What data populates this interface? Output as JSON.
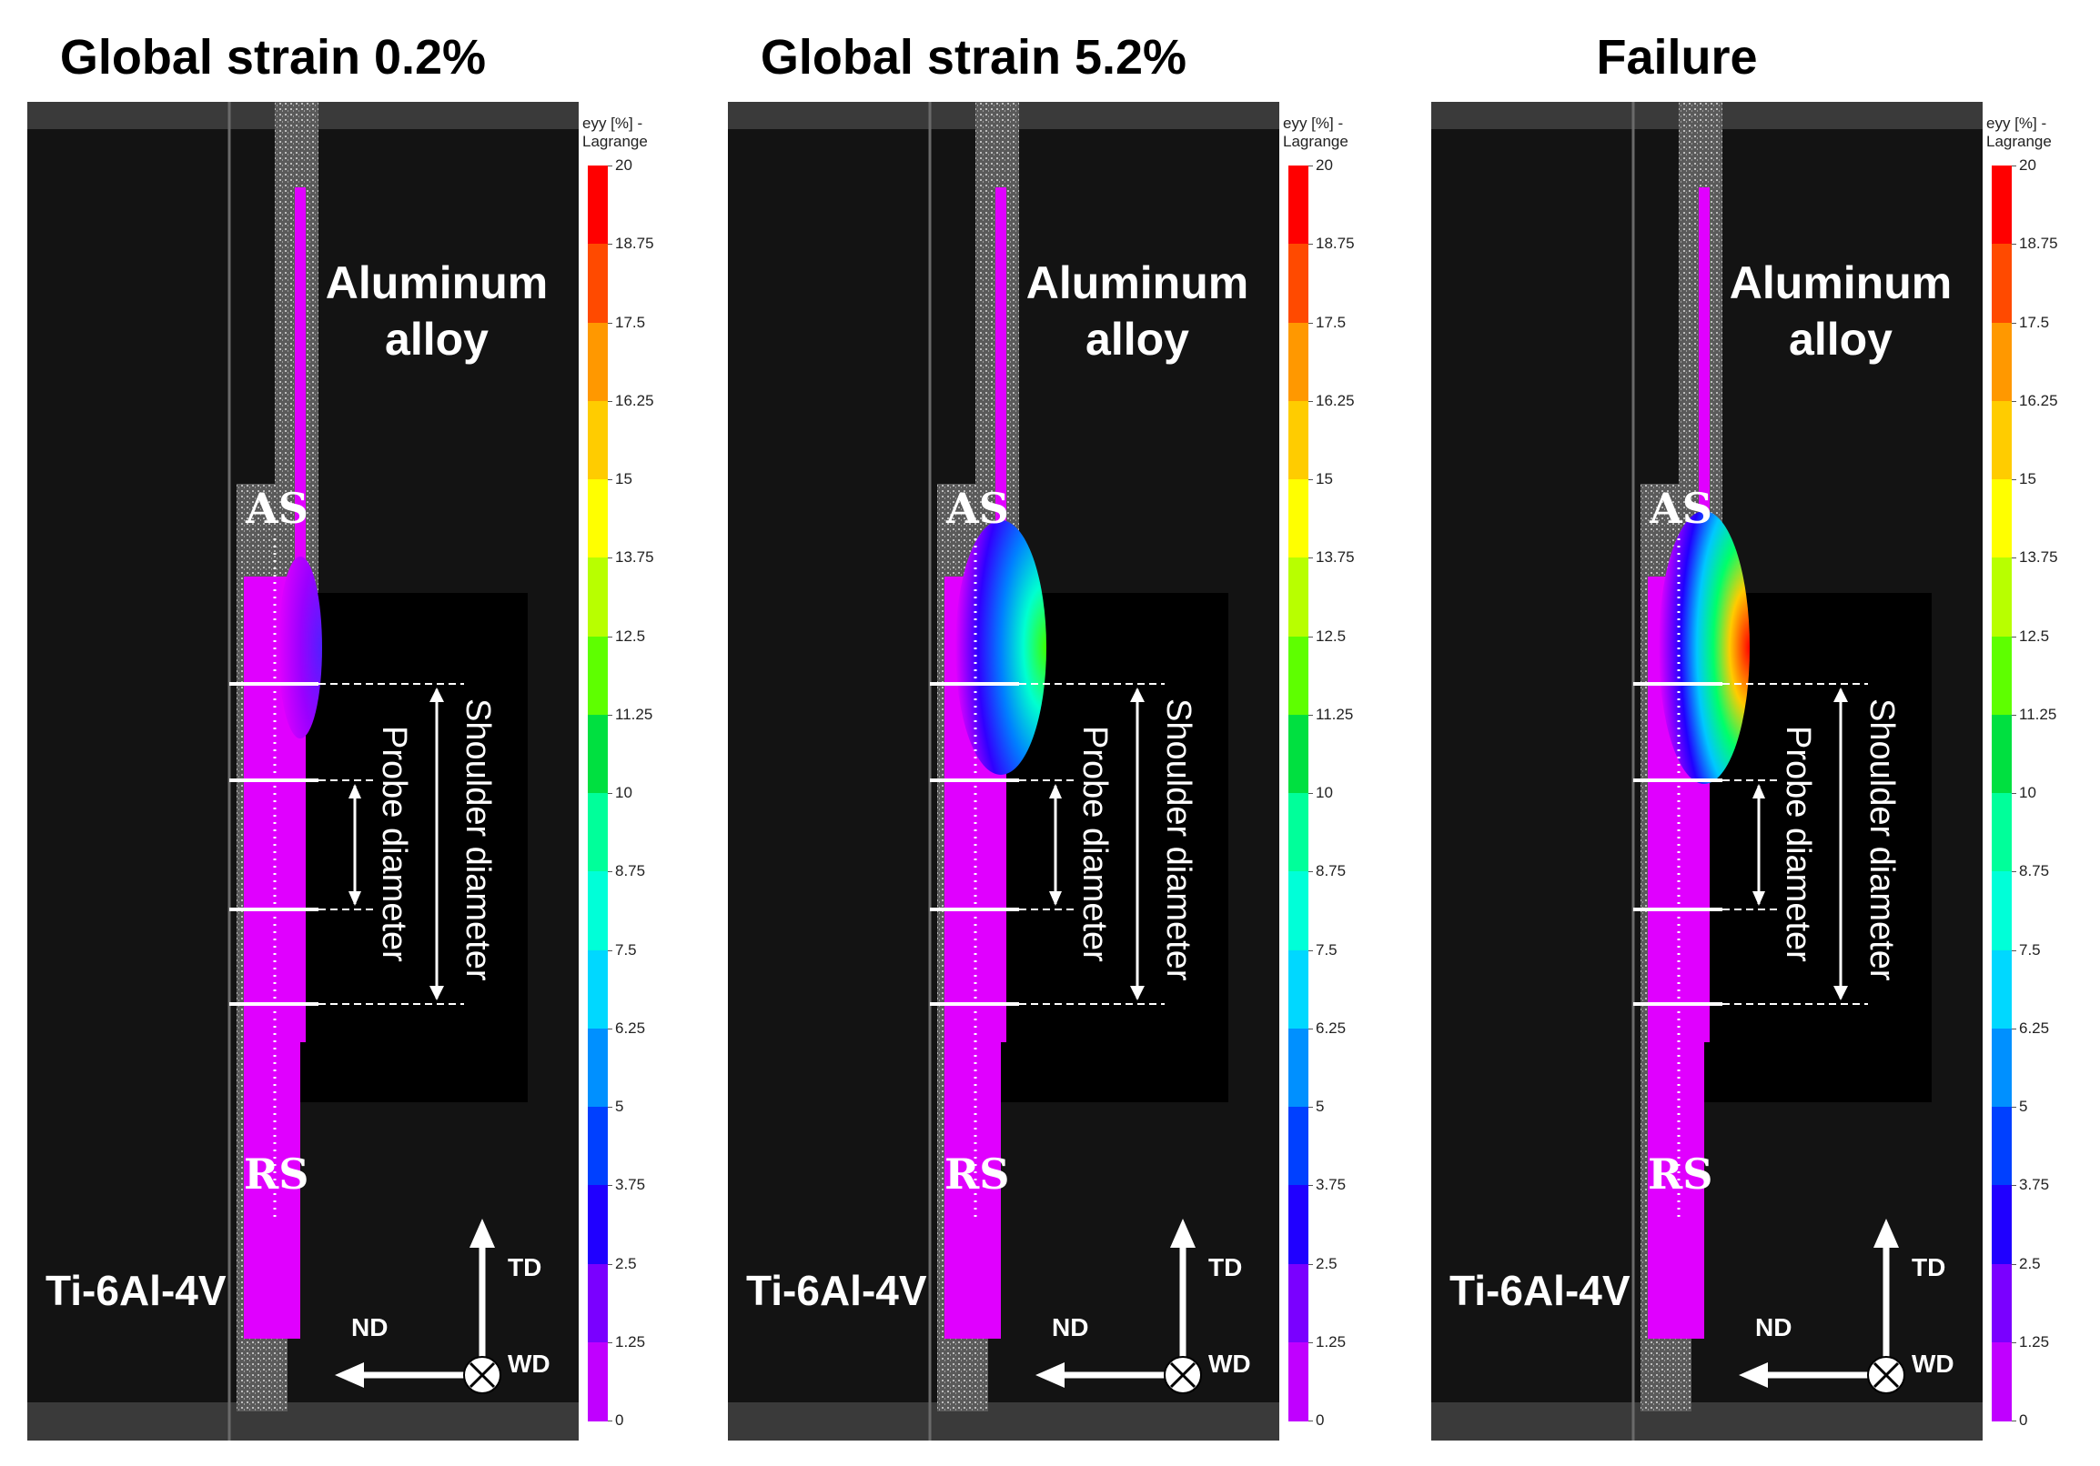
{
  "colorbar": {
    "title_line1": "eyy [%] -",
    "title_line2": "Lagrange",
    "ticks": [
      "20",
      "18.75",
      "17.5",
      "16.25",
      "15",
      "13.75",
      "12.5",
      "11.25",
      "10",
      "8.75",
      "7.5",
      "6.25",
      "5",
      "3.75",
      "2.5",
      "1.25",
      "0"
    ],
    "colors": [
      "#ff0000",
      "#ff4a00",
      "#ff9800",
      "#ffcc00",
      "#ffff00",
      "#b8ff00",
      "#5eff00",
      "#00e040",
      "#00ff9a",
      "#00ffd8",
      "#00d8ff",
      "#0090ff",
      "#0040ff",
      "#2000ff",
      "#7a00ff",
      "#c000ff"
    ]
  },
  "labels": {
    "aluminum_line1": "Aluminum",
    "aluminum_line2": "alloy",
    "titanium": "Ti-6Al-4V",
    "as": "AS",
    "rs": "RS",
    "shoulder": "Shoulder diameter",
    "probe": "Probe diameter",
    "td": "TD",
    "nd": "ND",
    "wd": "WD"
  },
  "panels": [
    {
      "title": "Global strain 0.2%",
      "strain_level": "low"
    },
    {
      "title": "Global strain 5.2%",
      "strain_level": "medium"
    },
    {
      "title": "Failure",
      "strain_level": "high"
    }
  ],
  "colors": {
    "magenta": "#e000ff",
    "speckle": "#8a8a8a",
    "background": "#131313"
  }
}
